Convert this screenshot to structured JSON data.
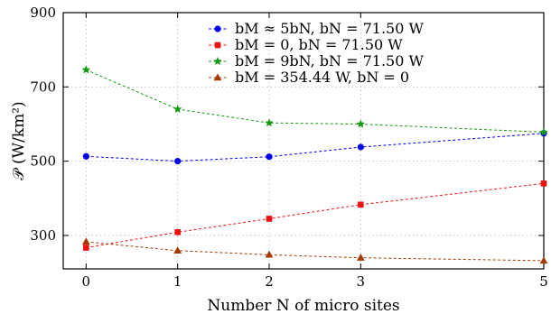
{
  "chart_data": {
    "type": "line",
    "xlabel": "Number N of micro sites",
    "ylabel": "𝒫 (W/km²)",
    "x": [
      0,
      1,
      2,
      3,
      5
    ],
    "xticks": [
      0,
      1,
      2,
      3,
      5
    ],
    "xlim": [
      -0.25,
      5.0
    ],
    "ylim": [
      210,
      900
    ],
    "yticks": [
      300,
      500,
      700,
      900
    ],
    "grid": true,
    "legend_position": "top-right",
    "series": [
      {
        "name": "bM ≈ 5bN, bN = 71.50 W",
        "color": "#0000ee",
        "marker": "circle",
        "values": [
          513,
          500,
          512,
          538,
          575
        ]
      },
      {
        "name": "bM = 0, bN = 71.50 W",
        "color": "#ee1111",
        "marker": "square",
        "values": [
          267,
          309,
          345,
          383,
          440
        ]
      },
      {
        "name": "bM = 9bN, bN = 71.50 W",
        "color": "#119911",
        "marker": "star",
        "values": [
          746,
          640,
          603,
          600,
          578
        ]
      },
      {
        "name": "bM = 354.44 W, bN = 0",
        "color": "#a33a00",
        "marker": "triangle",
        "values": [
          283,
          259,
          248,
          240,
          232
        ]
      }
    ]
  }
}
